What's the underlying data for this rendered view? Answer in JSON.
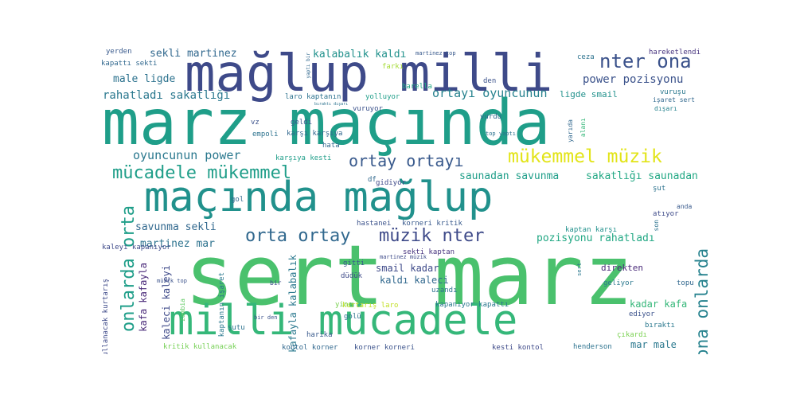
{
  "words": [
    {
      "id": "marz-macinda",
      "text": "marz maçında",
      "color": "#1f9e89"
    },
    {
      "id": "sert-marz",
      "text": "sert marz",
      "color": "#4ac16d"
    },
    {
      "id": "maglup-milli",
      "text": "mağlup milli",
      "color": "#3e4a89"
    },
    {
      "id": "macinda-maglup",
      "text": "maçında mağlup",
      "color": "#21918c"
    },
    {
      "id": "milli-mucadele",
      "text": "milli mücadele",
      "color": "#35b779"
    },
    {
      "id": "mucadele-mukemmel",
      "text": "mücadele mükemmel",
      "color": "#1f9e89"
    },
    {
      "id": "mukemmel-muzik",
      "text": "mükemmel müzik",
      "color": "#e2e418"
    },
    {
      "id": "nter-ona",
      "text": "nter ona",
      "color": "#3b528b"
    },
    {
      "id": "muzik-nter",
      "text": "müzik nter",
      "color": "#3e4a89"
    },
    {
      "id": "orta-ortay",
      "text": "orta ortay",
      "color": "#31688e"
    },
    {
      "id": "ortay-ortayi",
      "text": "ortay ortayı",
      "color": "#38598c"
    },
    {
      "id": "onlarda-orta",
      "text": "onlarda orta",
      "color": "#1f9e89"
    },
    {
      "id": "ona-onlarda",
      "text": "ona onlarda",
      "color": "#26828e"
    },
    {
      "id": "oyuncunun-power",
      "text": "oyuncunun power",
      "color": "#2a788e"
    },
    {
      "id": "ortayi-oyuncunun",
      "text": "ortayı oyuncunun",
      "color": "#26828e"
    },
    {
      "id": "power-pozisyonu",
      "text": "power pozisyonu",
      "color": "#3b528b"
    },
    {
      "id": "rahatladi-sakatligi",
      "text": "rahatladı sakatlığı",
      "color": "#2a788e"
    },
    {
      "id": "sekli-martinez",
      "text": "sekli martinez",
      "color": "#31688e"
    },
    {
      "id": "kalabalik-kaldi",
      "text": "kalabalık kaldı",
      "color": "#21918c"
    },
    {
      "id": "male-ligde",
      "text": "male ligde",
      "color": "#2c728e"
    },
    {
      "id": "saunadan-savunma",
      "text": "saunadan savunma",
      "color": "#1f9e89"
    },
    {
      "id": "sakatligi-saunadan",
      "text": "sakatlığı saunadan",
      "color": "#22a884"
    },
    {
      "id": "savunma-sekli",
      "text": "savunma sekli",
      "color": "#31688e"
    },
    {
      "id": "martinez-mar",
      "text": "martinez mar",
      "color": "#2c728e"
    },
    {
      "id": "pozisyonu-rahatladi",
      "text": "pozisyonu rahatladı",
      "color": "#22a884"
    },
    {
      "id": "ligde-smail",
      "text": "ligde smail",
      "color": "#21918c"
    },
    {
      "id": "smail-kadar",
      "text": "smail kadar",
      "color": "#3e4a89"
    },
    {
      "id": "kadar-kafa",
      "text": "kadar kafa",
      "color": "#35b779"
    },
    {
      "id": "mar-male",
      "text": "mar male",
      "color": "#2a788e"
    },
    {
      "id": "kafa-kafayla",
      "text": "kafa kafayla",
      "color": "#482878"
    },
    {
      "id": "kafayla-kalabalik",
      "text": "kafayla kalabalık",
      "color": "#2a788e"
    },
    {
      "id": "kaldi-kaleci",
      "text": "kaldı kaleci",
      "color": "#31688e"
    },
    {
      "id": "kaleci-kaleyi",
      "text": "kaleci kaleyi",
      "color": "#3e4a89"
    },
    {
      "id": "kaleyi-kapaniyor",
      "text": "kaleyi kapanıyor",
      "color": "#3e4a89"
    },
    {
      "id": "kapaniyor-kapatti",
      "text": "kapanıyor kapattı",
      "color": "#2a788e"
    },
    {
      "id": "kapatti-sekti",
      "text": "kapattı sekti",
      "color": "#31688e"
    },
    {
      "id": "sekti-kaptan",
      "text": "sekti kaptan",
      "color": "#46337e"
    },
    {
      "id": "kaptan-karsi",
      "text": "kaptan karşı",
      "color": "#21918c"
    },
    {
      "id": "karsi-karsiya",
      "text": "karşı karşıya",
      "color": "#31688e"
    },
    {
      "id": "karsiya-kesti",
      "text": "karşıya kesti",
      "color": "#1f9e89"
    },
    {
      "id": "kesti-kontol",
      "text": "kesti kontol",
      "color": "#3e4a89"
    },
    {
      "id": "kontol-korner",
      "text": "kontol korner",
      "color": "#31688e"
    },
    {
      "id": "korner-korneri",
      "text": "korner korneri",
      "color": "#3b528b"
    },
    {
      "id": "korneri-kritik",
      "text": "korneri kritik",
      "color": "#38598c"
    },
    {
      "id": "kritik-kullanacak",
      "text": "kritik kullanacak",
      "color": "#75d054"
    },
    {
      "id": "kullanacak-kurtaris",
      "text": "kullanacak kurtarış",
      "color": "#3e4a89"
    },
    {
      "id": "kurtaris-laro",
      "text": "kurtarış laro",
      "color": "#c2df23"
    },
    {
      "id": "laro-kaptanin",
      "text": "laro kaptanın",
      "color": "#2c728e"
    },
    {
      "id": "kaptanin-isaret",
      "text": "kaptanın işaret",
      "color": "#2a788e"
    },
    {
      "id": "isaret-sert",
      "text": "işaret sert",
      "color": "#31688e"
    },
    {
      "id": "hastanei",
      "text": "hastanei",
      "color": "#3b528b"
    },
    {
      "id": "henderson",
      "text": "henderson",
      "color": "#2c728e"
    },
    {
      "id": "hareketlendi",
      "text": "hareketlendi",
      "color": "#46337e"
    },
    {
      "id": "geliyor",
      "text": "geliyor",
      "color": "#2a788e"
    },
    {
      "id": "gidiyor",
      "text": "gidiyor",
      "color": "#3e4a89"
    },
    {
      "id": "geldi",
      "text": "geldi",
      "color": "#38598c"
    },
    {
      "id": "golu",
      "text": "golü",
      "color": "#2c728e"
    },
    {
      "id": "gol",
      "text": "gol",
      "color": "#31688e"
    },
    {
      "id": "gitti",
      "text": "gitti",
      "color": "#38598c"
    },
    {
      "id": "duduk",
      "text": "düdük",
      "color": "#3e4a89"
    },
    {
      "id": "direkten",
      "text": "direkten",
      "color": "#482878"
    },
    {
      "id": "disari",
      "text": "dışarı",
      "color": "#26828e"
    },
    {
      "id": "cikardi",
      "text": "çıkardı",
      "color": "#7ad151"
    },
    {
      "id": "ediyor",
      "text": "ediyor",
      "color": "#3b528b"
    },
    {
      "id": "birakti",
      "text": "bıraktı",
      "color": "#2a788e"
    },
    {
      "id": "topu",
      "text": "topu",
      "color": "#31688e"
    },
    {
      "id": "sut",
      "text": "şut",
      "color": "#2c728e"
    },
    {
      "id": "sutu",
      "text": "şutu",
      "color": "#2c728e"
    },
    {
      "id": "atiyor",
      "text": "atıyor",
      "color": "#3e4a89"
    },
    {
      "id": "yolluyor",
      "text": "yolluyor",
      "color": "#1f9e89"
    },
    {
      "id": "vuruyor",
      "text": "vuruyor",
      "color": "#3b528b"
    },
    {
      "id": "vurdu",
      "text": "vurdu",
      "color": "#31688e"
    },
    {
      "id": "vurusu",
      "text": "vuruşu",
      "color": "#2a788e"
    },
    {
      "id": "harika",
      "text": "harika",
      "color": "#38598c"
    },
    {
      "id": "hata",
      "text": "hata",
      "color": "#31688e"
    },
    {
      "id": "empoli",
      "text": "empoli",
      "color": "#2c728e"
    },
    {
      "id": "vz",
      "text": "vz",
      "color": "#3b528b"
    },
    {
      "id": "df",
      "text": "df",
      "color": "#31688e"
    },
    {
      "id": "ilk",
      "text": "ilk",
      "color": "#3e4a89"
    },
    {
      "id": "farki",
      "text": "farkı",
      "color": "#a5db36"
    },
    {
      "id": "barella",
      "text": "barella",
      "color": "#22a884"
    },
    {
      "id": "den",
      "text": "den",
      "color": "#3b528b"
    },
    {
      "id": "ceza",
      "text": "ceza",
      "color": "#2c728e"
    },
    {
      "id": "yerden",
      "text": "yerden",
      "color": "#38598c"
    },
    {
      "id": "yine",
      "text": "yine",
      "color": "#7ad151"
    },
    {
      "id": "uzandi",
      "text": "uzandı",
      "color": "#2c728e"
    },
    {
      "id": "anda",
      "text": "anda",
      "color": "#38598c"
    },
    {
      "id": "bir",
      "text": "bir",
      "color": "#3e4a89"
    },
    {
      "id": "bir-den",
      "text": "bir den",
      "color": "#3b528b"
    },
    {
      "id": "son",
      "text": "son",
      "color": "#2c728e"
    },
    {
      "id": "alani",
      "text": "alanı",
      "color": "#35b779"
    },
    {
      "id": "yarida",
      "text": "yarıda",
      "color": "#31688e"
    },
    {
      "id": "zambia",
      "text": "zambia",
      "color": "#5ec962"
    },
    {
      "id": "muzik-top",
      "text": "müzik top",
      "color": "#3b528b"
    },
    {
      "id": "top-yapti",
      "text": "top yaptı",
      "color": "#2c728e"
    },
    {
      "id": "yapti-bir",
      "text": "yaptı bir",
      "color": "#31688e"
    },
    {
      "id": "martinez-top",
      "text": "martinez top",
      "color": "#38598c"
    },
    {
      "id": "martinez-muzik",
      "text": "martinez müzik",
      "color": "#3e4a89"
    },
    {
      "id": "birakti-disari",
      "text": "bıraktı dışarı",
      "color": "#2c728e"
    },
    {
      "id": "sert-small",
      "text": "sert",
      "color": "#2a788e"
    }
  ]
}
